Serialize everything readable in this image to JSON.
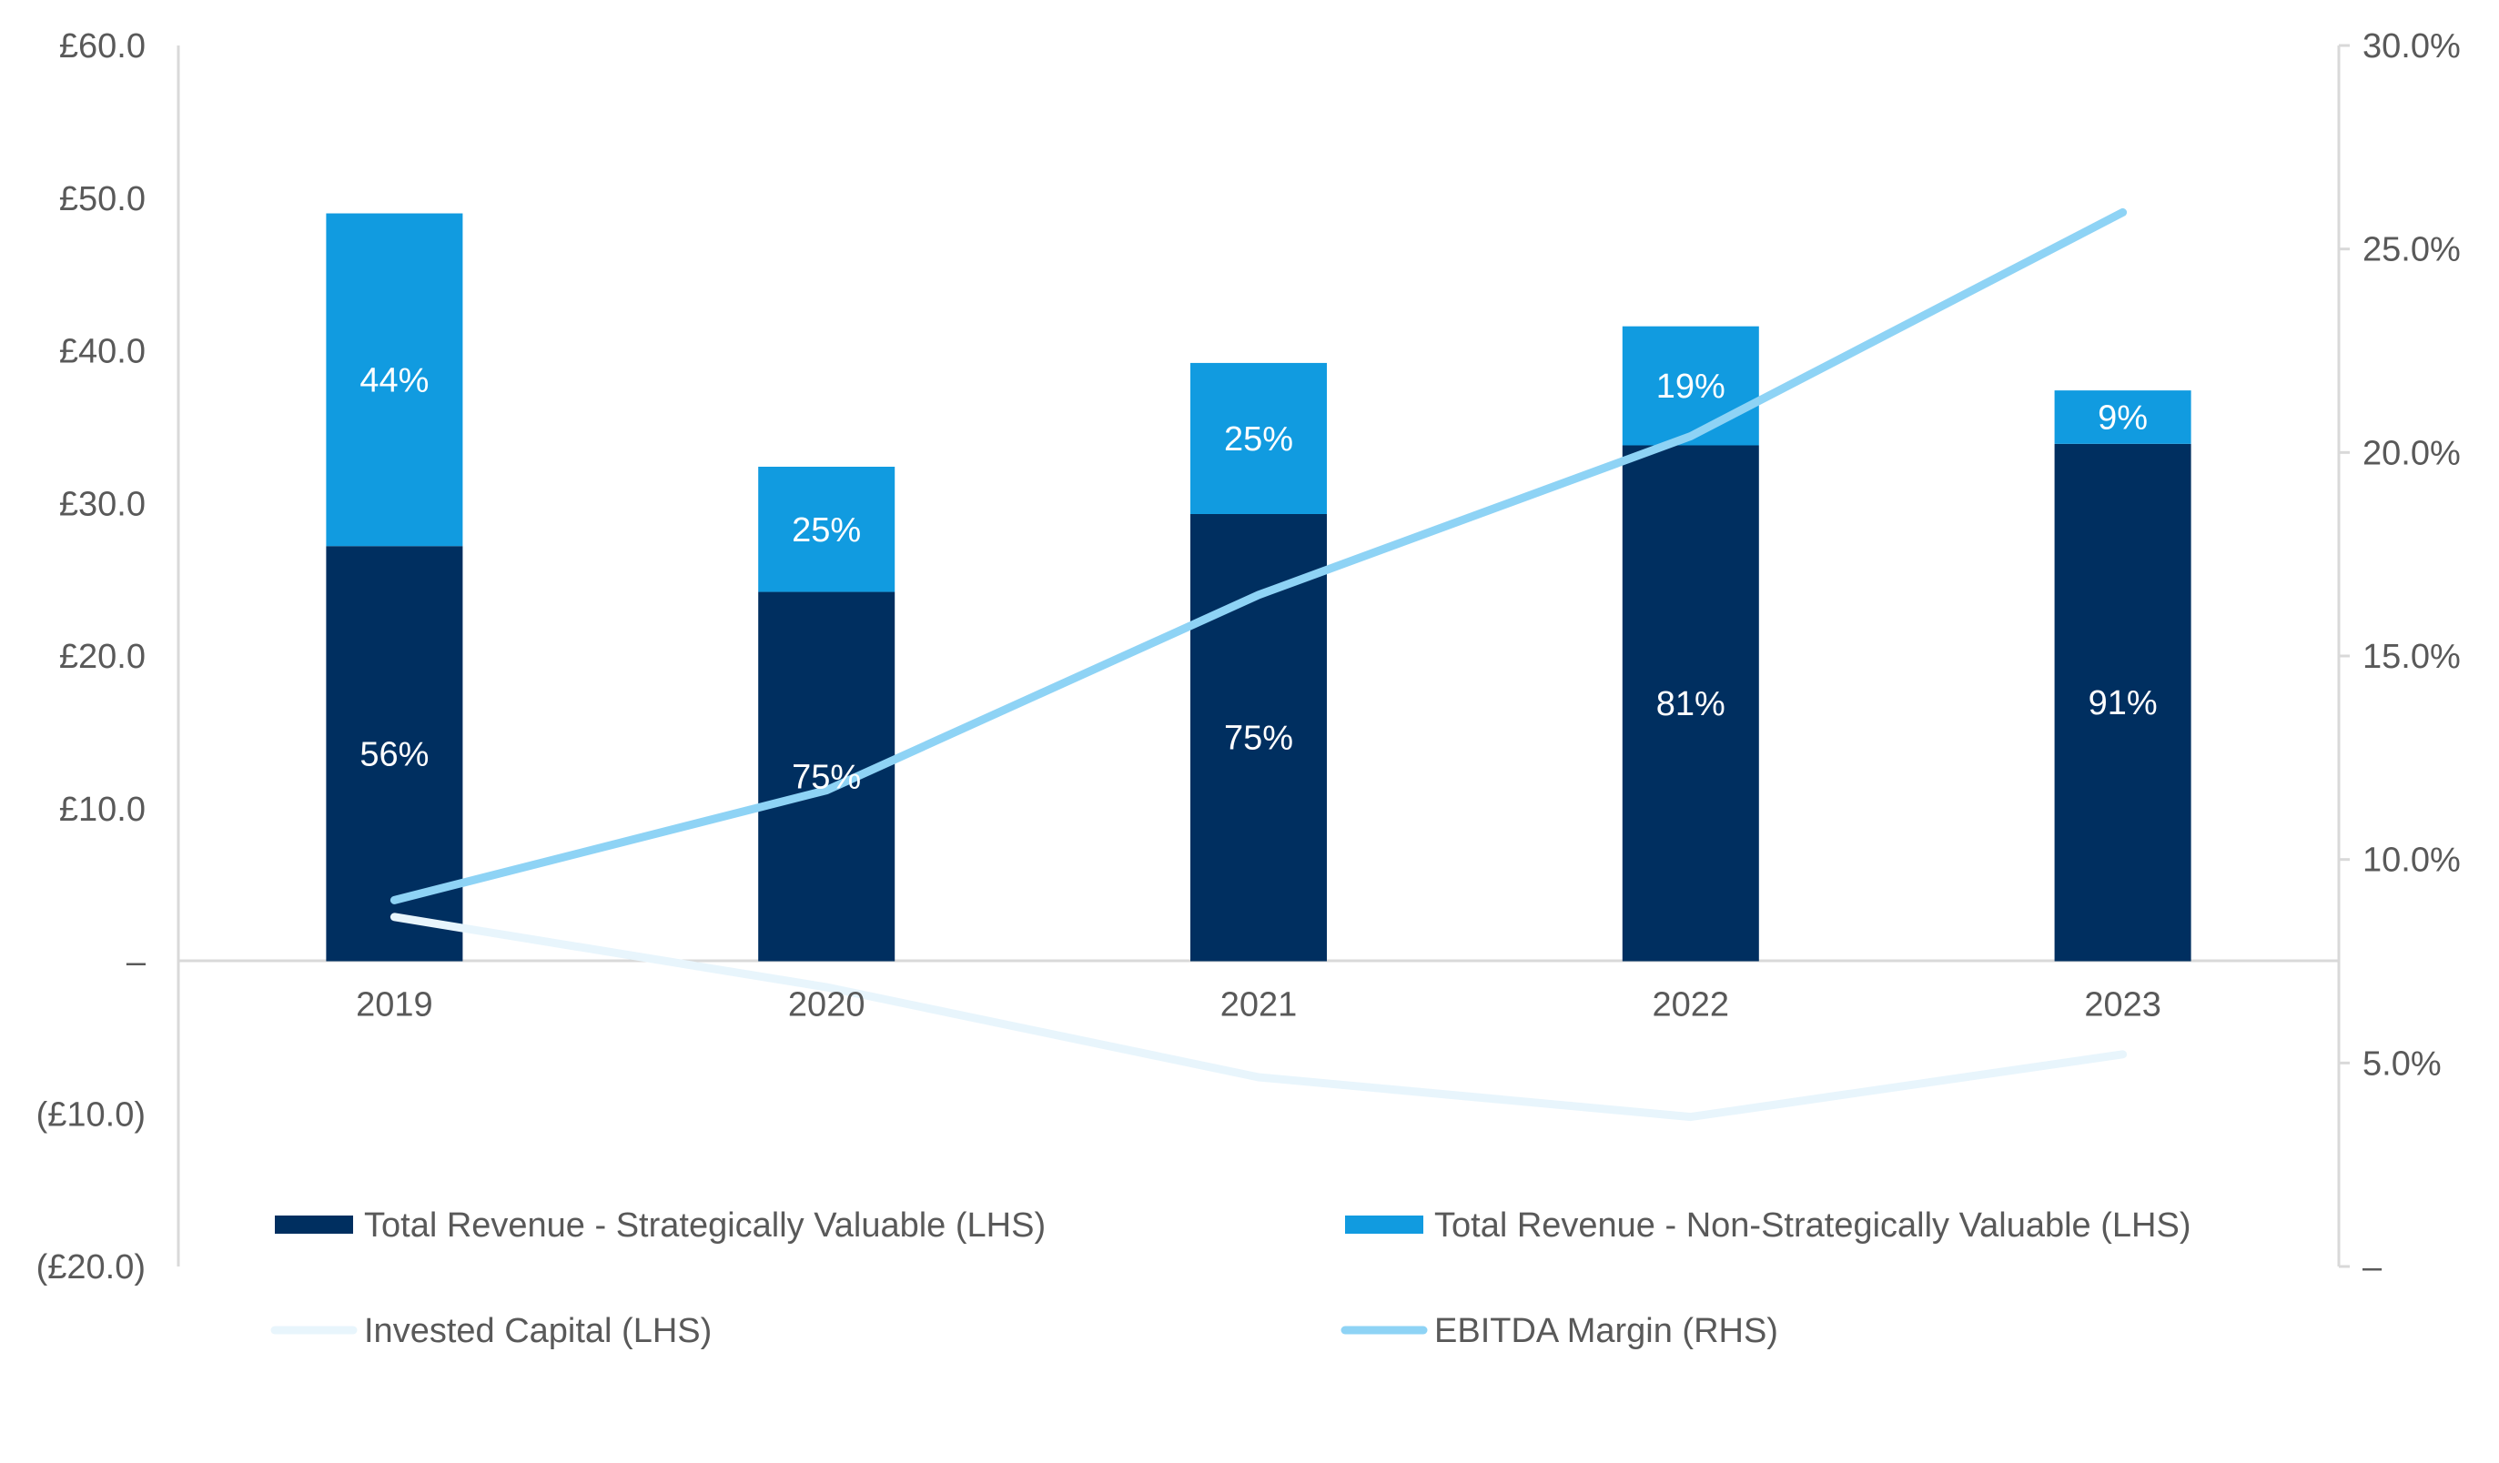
{
  "chart_data": {
    "type": "bar",
    "categories": [
      "2019",
      "2020",
      "2021",
      "2022",
      "2023"
    ],
    "left_axis": {
      "ylim": [
        -20,
        60
      ],
      "ticks": [
        60,
        50,
        40,
        30,
        20,
        10,
        0,
        -10,
        -20
      ],
      "tick_labels": [
        "£60.0",
        "£50.0",
        "£40.0",
        "£30.0",
        "£20.0",
        "£10.0",
        "–",
        "(£10.0)",
        "(£20.0)"
      ]
    },
    "right_axis": {
      "ylim": [
        0,
        30
      ],
      "ticks": [
        30,
        25,
        20,
        15,
        10,
        5,
        0
      ],
      "tick_labels": [
        "30.0%",
        "25.0%",
        "20.0%",
        "15.0%",
        "10.0%",
        "5.0%",
        "–"
      ]
    },
    "series": [
      {
        "name": "Total Revenue - Strategically Valuable (LHS)",
        "kind": "bar",
        "axis": "left",
        "color": "#002F60",
        "values": [
          27.2,
          24.2,
          29.3,
          33.8,
          33.9
        ],
        "labels": [
          "56%",
          "75%",
          "75%",
          "81%",
          "91%"
        ]
      },
      {
        "name": "Total Revenue - Non-Strategically Valuable (LHS)",
        "kind": "bar",
        "axis": "left",
        "color": "#119BE0",
        "values": [
          21.8,
          8.2,
          9.9,
          7.8,
          3.5
        ],
        "labels": [
          "44%",
          "25%",
          "25%",
          "19%",
          "9%"
        ]
      },
      {
        "name": "Invested Capital (LHS)",
        "kind": "line",
        "axis": "left",
        "color": "#E8F5FC",
        "values": [
          2.9,
          -1.7,
          -7.6,
          -10.2,
          -6.1
        ]
      },
      {
        "name": "EBITDA Margin (RHS)",
        "kind": "line",
        "axis": "right",
        "color": "#8ED3F5",
        "values": [
          9.0,
          11.7,
          16.5,
          20.4,
          25.9
        ]
      }
    ],
    "legend_position": "bottom",
    "grid": false
  }
}
